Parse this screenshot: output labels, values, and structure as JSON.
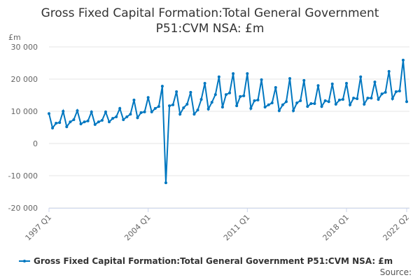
{
  "chart_data": {
    "type": "line",
    "title": "Gross Fixed Capital Formation:Total General Government P51:CVM NSA: £m",
    "ylabel": "£m",
    "xlabel": "",
    "ylim": [
      -20000,
      30000
    ],
    "yticks": [
      30000,
      20000,
      10000,
      0,
      -10000,
      -20000
    ],
    "ytick_labels": [
      "30 000",
      "20 000",
      "10 000",
      "0",
      "-10 000",
      "-20 000"
    ],
    "xtick_labels": [
      "1997 Q1",
      "2004 Q1",
      "2011 Q1",
      "2018 Q1",
      "2022 Q2"
    ],
    "grid": true,
    "legend_position": "bottom",
    "color": "#0077c0",
    "start": "1997 Q1",
    "end": "2022 Q2",
    "series": [
      {
        "name": "Gross Fixed Capital Formation:Total General Government P51:CVM NSA: £m",
        "values": [
          9300,
          4800,
          6300,
          6500,
          10000,
          5200,
          6700,
          7400,
          10200,
          6100,
          6700,
          7000,
          9800,
          5900,
          6700,
          7200,
          9800,
          6700,
          7800,
          8300,
          10900,
          7400,
          8300,
          9100,
          13500,
          8000,
          9600,
          9800,
          14300,
          9800,
          10900,
          11500,
          17800,
          -12200,
          11700,
          12000,
          16100,
          9100,
          11100,
          12200,
          15900,
          9100,
          10400,
          13700,
          18700,
          10700,
          12800,
          15200,
          20700,
          11300,
          15200,
          15700,
          21700,
          11700,
          14600,
          14800,
          21700,
          10900,
          13300,
          13500,
          19800,
          11300,
          12000,
          12600,
          17400,
          10200,
          12000,
          13000,
          20200,
          10200,
          12600,
          13300,
          19600,
          11500,
          12400,
          12400,
          18000,
          11500,
          13300,
          13000,
          18500,
          12200,
          13500,
          13700,
          18700,
          12000,
          14100,
          13900,
          20700,
          12200,
          14100,
          14100,
          19100,
          13700,
          15400,
          15900,
          22400,
          13900,
          16100,
          16300,
          25900,
          13000
        ]
      }
    ]
  },
  "footer": {
    "source": "Source:"
  }
}
